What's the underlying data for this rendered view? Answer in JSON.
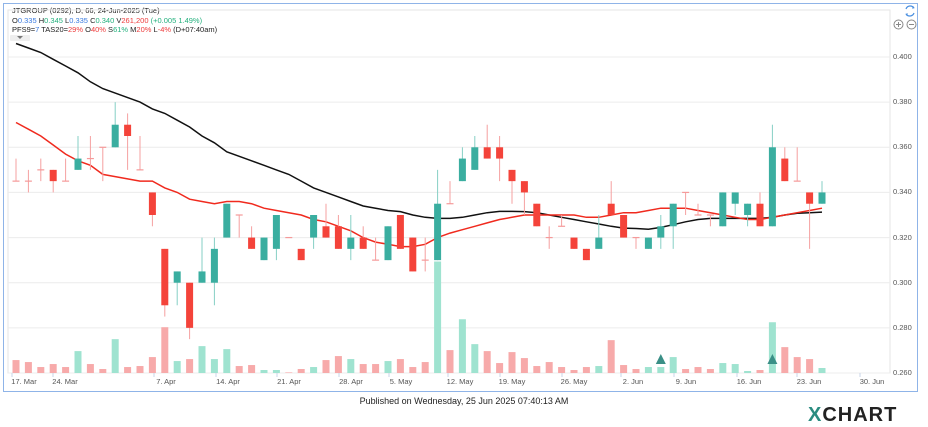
{
  "header": {
    "line1": "JTGROUP (0292), D, 66, 24-Jun-2025 (Tue)",
    "ohlc": {
      "o_label": "O",
      "o": "0.335",
      "h_label": "H",
      "h": "0.345",
      "l_label": "L",
      "l": "0.335",
      "c_label": "C",
      "c": "0.340",
      "v_label": "V",
      "v": "261,200",
      "change": "(+0.005 1.49%)"
    },
    "indicators": {
      "pfs_label": "PFS9=",
      "pfs": "7",
      "tas_label": " TAS20=",
      "tas": "29%",
      "o_label": " O",
      "o": "40%",
      "s_label": " S",
      "s": "61%",
      "m_label": " M",
      "m": "20%",
      "l_label": " L",
      "l": "-4%",
      "time": " (D+07:40am)"
    }
  },
  "colors": {
    "up": "#3aaea0",
    "down": "#f4433a",
    "doji": "#f59a9a",
    "up_volume": "#9fe3d0",
    "down_volume": "#f7aaaa",
    "line_black": "#111111",
    "line_red": "#f02a1e",
    "signal": "#3a8f86"
  },
  "icons": [
    "refresh-icon",
    "zoom-in-icon",
    "zoom-out-icon",
    "dropdown-icon"
  ],
  "chart_data": {
    "type": "candlestick",
    "y_axis": {
      "ticks": [
        "0.260",
        "0.280",
        "0.300",
        "0.320",
        "0.340",
        "0.360",
        "0.380",
        "0.400"
      ],
      "ylim": [
        0.26,
        0.4
      ],
      "position": "right"
    },
    "x_axis": {
      "ticks": [
        "17. Mar",
        "24. Mar",
        "7. Apr",
        "14. Apr",
        "21. Apr",
        "28. Apr",
        "5. May",
        "12. May",
        "19. May",
        "26. May",
        "2. Jun",
        "9. Jun",
        "16. Jun",
        "23. Jun",
        "30. Jun"
      ]
    },
    "grid": true,
    "ohlc": [
      [
        0.345,
        0.355,
        0.345,
        0.345
      ],
      [
        0.345,
        0.35,
        0.34,
        0.345
      ],
      [
        0.35,
        0.355,
        0.345,
        0.35
      ],
      [
        0.35,
        0.35,
        0.34,
        0.345
      ],
      [
        0.345,
        0.355,
        0.345,
        0.345
      ],
      [
        0.35,
        0.365,
        0.35,
        0.355
      ],
      [
        0.355,
        0.365,
        0.35,
        0.355
      ],
      [
        0.36,
        0.36,
        0.345,
        0.36
      ],
      [
        0.36,
        0.38,
        0.36,
        0.37
      ],
      [
        0.37,
        0.375,
        0.35,
        0.365
      ],
      [
        0.35,
        0.365,
        0.35,
        0.35
      ],
      [
        0.34,
        0.34,
        0.325,
        0.33
      ],
      [
        0.315,
        0.315,
        0.285,
        0.29
      ],
      [
        0.3,
        0.305,
        0.29,
        0.305
      ],
      [
        0.3,
        0.3,
        0.275,
        0.28
      ],
      [
        0.3,
        0.32,
        0.3,
        0.305
      ],
      [
        0.3,
        0.32,
        0.29,
        0.315
      ],
      [
        0.32,
        0.335,
        0.32,
        0.335
      ],
      [
        0.33,
        0.33,
        0.32,
        0.33
      ],
      [
        0.32,
        0.325,
        0.315,
        0.315
      ],
      [
        0.31,
        0.32,
        0.31,
        0.32
      ],
      [
        0.315,
        0.33,
        0.31,
        0.33
      ],
      [
        0.32,
        0.32,
        0.32,
        0.32
      ],
      [
        0.315,
        0.315,
        0.31,
        0.31
      ],
      [
        0.32,
        0.33,
        0.315,
        0.33
      ],
      [
        0.325,
        0.335,
        0.32,
        0.32
      ],
      [
        0.325,
        0.33,
        0.315,
        0.315
      ],
      [
        0.315,
        0.33,
        0.31,
        0.32
      ],
      [
        0.32,
        0.325,
        0.315,
        0.315
      ],
      [
        0.31,
        0.32,
        0.31,
        0.31
      ],
      [
        0.31,
        0.325,
        0.31,
        0.325
      ],
      [
        0.33,
        0.33,
        0.315,
        0.315
      ],
      [
        0.32,
        0.32,
        0.305,
        0.305
      ],
      [
        0.31,
        0.32,
        0.305,
        0.31
      ],
      [
        0.31,
        0.35,
        0.31,
        0.335
      ],
      [
        0.335,
        0.345,
        0.335,
        0.335
      ],
      [
        0.345,
        0.36,
        0.345,
        0.355
      ],
      [
        0.35,
        0.365,
        0.35,
        0.36
      ],
      [
        0.36,
        0.37,
        0.355,
        0.355
      ],
      [
        0.36,
        0.365,
        0.345,
        0.355
      ],
      [
        0.35,
        0.35,
        0.335,
        0.345
      ],
      [
        0.345,
        0.345,
        0.33,
        0.34
      ],
      [
        0.335,
        0.335,
        0.325,
        0.325
      ],
      [
        0.32,
        0.325,
        0.315,
        0.32
      ],
      [
        0.325,
        0.33,
        0.325,
        0.325
      ],
      [
        0.32,
        0.32,
        0.315,
        0.315
      ],
      [
        0.315,
        0.315,
        0.31,
        0.31
      ],
      [
        0.315,
        0.33,
        0.315,
        0.32
      ],
      [
        0.335,
        0.345,
        0.33,
        0.33
      ],
      [
        0.33,
        0.33,
        0.32,
        0.32
      ],
      [
        0.32,
        0.32,
        0.315,
        0.32
      ],
      [
        0.315,
        0.32,
        0.315,
        0.32
      ],
      [
        0.32,
        0.33,
        0.315,
        0.325
      ],
      [
        0.325,
        0.335,
        0.315,
        0.335
      ],
      [
        0.34,
        0.34,
        0.33,
        0.34
      ],
      [
        0.33,
        0.335,
        0.33,
        0.33
      ],
      [
        0.33,
        0.33,
        0.325,
        0.33
      ],
      [
        0.325,
        0.34,
        0.325,
        0.34
      ],
      [
        0.335,
        0.34,
        0.33,
        0.34
      ],
      [
        0.33,
        0.335,
        0.325,
        0.335
      ],
      [
        0.335,
        0.34,
        0.325,
        0.325
      ],
      [
        0.325,
        0.37,
        0.325,
        0.36
      ],
      [
        0.355,
        0.36,
        0.345,
        0.345
      ],
      [
        0.345,
        0.36,
        0.345,
        0.345
      ],
      [
        0.34,
        0.34,
        0.315,
        0.335
      ],
      [
        0.335,
        0.345,
        0.335,
        0.34
      ]
    ],
    "volume": [
      676000,
      572000,
      312000,
      468000,
      312000,
      1144000,
      468000,
      208000,
      1768000,
      312000,
      364000,
      832000,
      2392000,
      624000,
      728000,
      1404000,
      728000,
      1248000,
      364000,
      416000,
      156000,
      156000,
      26000,
      208000,
      312000,
      676000,
      884000,
      728000,
      468000,
      468000,
      624000,
      728000,
      312000,
      572000,
      5824000,
      1196000,
      2808000,
      1508000,
      1144000,
      520000,
      1092000,
      780000,
      364000,
      572000,
      312000,
      156000,
      312000,
      364000,
      1716000,
      416000,
      208000,
      312000,
      312000,
      832000,
      208000,
      312000,
      208000,
      520000,
      468000,
      104000,
      156000,
      2652000,
      1352000,
      832000,
      728000,
      261200
    ],
    "lines": [
      {
        "color": "#111111",
        "values": [
          0.406,
          0.404,
          0.402,
          0.399,
          0.396,
          0.393,
          0.389,
          0.386,
          0.384,
          0.382,
          0.38,
          0.377,
          0.375,
          0.372,
          0.369,
          0.365,
          0.362,
          0.358,
          0.356,
          0.354,
          0.352,
          0.35,
          0.348,
          0.345,
          0.342,
          0.34,
          0.338,
          0.336,
          0.334,
          0.333,
          0.332,
          0.3315,
          0.33,
          0.329,
          0.3285,
          0.3285,
          0.329,
          0.33,
          0.331,
          0.3316,
          0.3316,
          0.3315,
          0.331,
          0.33,
          0.329,
          0.328,
          0.327,
          0.326,
          0.325,
          0.3242,
          0.324,
          0.3237,
          0.3245,
          0.3257,
          0.327,
          0.328,
          0.3285,
          0.3285,
          0.3285,
          0.3285,
          0.3285,
          0.329,
          0.33,
          0.3308,
          0.331,
          0.3313
        ]
      },
      {
        "color": "#f02a1e",
        "values": [
          0.371,
          0.368,
          0.365,
          0.361,
          0.357,
          0.354,
          0.352,
          0.348,
          0.347,
          0.346,
          0.345,
          0.345,
          0.342,
          0.34,
          0.337,
          0.336,
          0.335,
          0.336,
          0.336,
          0.335,
          0.333,
          0.332,
          0.331,
          0.33,
          0.328,
          0.327,
          0.325,
          0.323,
          0.32,
          0.318,
          0.317,
          0.316,
          0.316,
          0.317,
          0.32,
          0.322,
          0.3235,
          0.325,
          0.3265,
          0.328,
          0.329,
          0.33,
          0.33,
          0.33,
          0.33,
          0.33,
          0.329,
          0.329,
          0.33,
          0.331,
          0.331,
          0.332,
          0.333,
          0.333,
          0.333,
          0.332,
          0.331,
          0.33,
          0.329,
          0.328,
          0.328,
          0.329,
          0.33,
          0.331,
          0.332,
          0.333
        ]
      }
    ],
    "signals": [
      52,
      61
    ]
  },
  "footer": {
    "published": "Published on Wednesday, 25 Jun 2025 07:40:13 AM",
    "logo": "XCHART"
  }
}
